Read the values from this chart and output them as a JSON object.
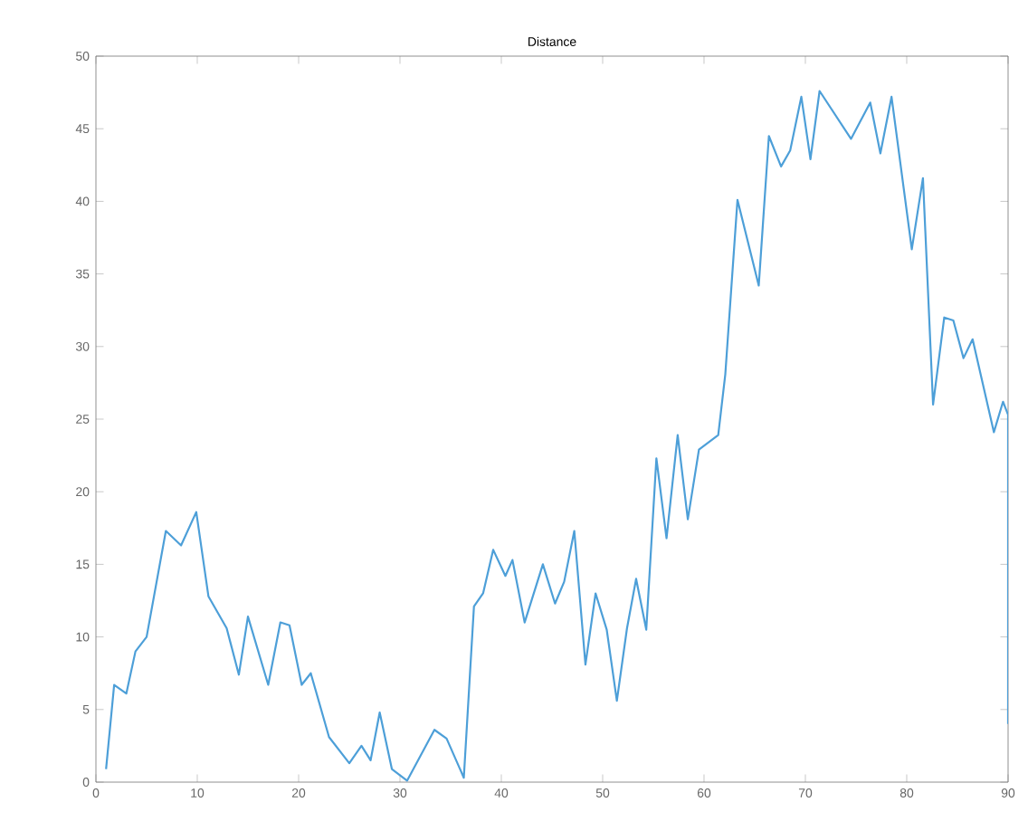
{
  "chart_data": {
    "type": "line",
    "title": "Distance",
    "x": [
      1,
      1.8,
      3,
      3.9,
      5,
      6.9,
      8.4,
      9.9,
      11.1,
      12.9,
      14.1,
      15,
      17,
      18.2,
      19.1,
      20.3,
      21.2,
      23,
      25,
      26.2,
      27.1,
      28,
      29.2,
      30.7,
      33.4,
      34.6,
      36.3,
      37.3,
      38.2,
      39.2,
      40.4,
      41.1,
      42.3,
      44.1,
      45.3,
      46.2,
      47.2,
      48.3,
      49.3,
      50.4,
      51.4,
      52.4,
      53.3,
      54.3,
      55.3,
      56.3,
      57.4,
      58.4,
      59.5,
      61.4,
      62.1,
      63.3,
      65.4,
      66.4,
      67.6,
      68.5,
      69.6,
      70.5,
      71.4,
      74.5,
      76.4,
      77.4,
      78.5,
      80.5,
      81.6,
      82.6,
      83.7,
      84.6,
      85.6,
      86.5,
      88.6,
      89.5,
      90,
      90
    ],
    "series": [
      {
        "color": "#4d9fd8",
        "values": [
          0.9,
          6.7,
          6.1,
          9,
          10,
          17.3,
          16.3,
          18.6,
          12.8,
          10.6,
          7.4,
          11.4,
          6.7,
          11,
          10.8,
          6.7,
          7.5,
          3.1,
          1.3,
          2.5,
          1.5,
          4.8,
          0.9,
          0.1,
          3.6,
          3,
          0.3,
          12.1,
          13,
          16,
          14.2,
          15.3,
          11,
          15,
          12.3,
          13.8,
          17.3,
          8.1,
          13,
          10.5,
          5.6,
          10.6,
          14,
          10.5,
          22.3,
          16.8,
          23.9,
          18.1,
          22.9,
          23.9,
          28.1,
          40.1,
          34.2,
          44.5,
          42.4,
          43.5,
          47.2,
          42.9,
          47.6,
          44.3,
          46.8,
          43.3,
          47.2,
          36.7,
          41.6,
          26,
          32,
          31.8,
          29.2,
          30.5,
          24.1,
          26.2,
          25.3,
          4
        ]
      }
    ],
    "xlim": [
      0,
      90
    ],
    "ylim": [
      0,
      50
    ],
    "xticks": [
      0,
      10,
      20,
      30,
      40,
      50,
      60,
      70,
      80,
      90
    ],
    "yticks": [
      0,
      5,
      10,
      15,
      20,
      25,
      30,
      35,
      40,
      45,
      50
    ],
    "grid": false,
    "marker": "none",
    "line_style": "solid"
  }
}
